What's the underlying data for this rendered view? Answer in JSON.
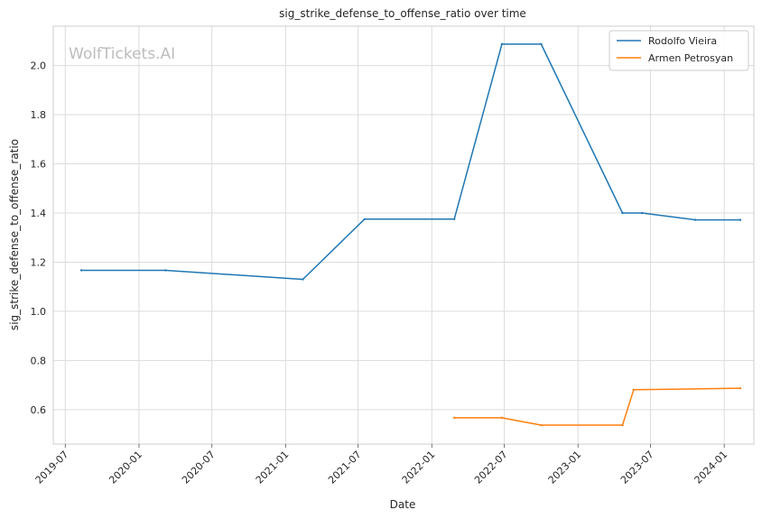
{
  "watermark": "WolfTickets.AI",
  "chart_data": {
    "type": "line",
    "title": "sig_strike_defense_to_offense_ratio over time",
    "xlabel": "Date",
    "ylabel": "sig_strike_defense_to_offense_ratio",
    "x_ticks": [
      "2019-07",
      "2020-01",
      "2020-07",
      "2021-01",
      "2021-07",
      "2022-01",
      "2022-07",
      "2023-01",
      "2023-07",
      "2024-01"
    ],
    "y_ticks": [
      "0.6",
      "0.8",
      "1.0",
      "1.2",
      "1.4",
      "1.6",
      "1.8",
      "2.0"
    ],
    "xlim": [
      "2019-06-01",
      "2024-03-15"
    ],
    "ylim": [
      0.46,
      2.16
    ],
    "grid": true,
    "legend_position": "top-right",
    "series": [
      {
        "name": "Rodolfo Vieira",
        "color": "#1f77b4",
        "points": [
          {
            "x": "2019-08-10",
            "y": 1.167
          },
          {
            "x": "2020-03-07",
            "y": 1.167
          },
          {
            "x": "2021-02-13",
            "y": 1.13
          },
          {
            "x": "2021-07-17",
            "y": 1.375
          },
          {
            "x": "2022-02-26",
            "y": 1.375
          },
          {
            "x": "2022-06-25",
            "y": 2.087
          },
          {
            "x": "2022-10-01",
            "y": 2.087
          },
          {
            "x": "2023-04-22",
            "y": 1.4
          },
          {
            "x": "2023-06-10",
            "y": 1.4
          },
          {
            "x": "2023-10-21",
            "y": 1.372
          },
          {
            "x": "2024-02-10",
            "y": 1.372
          }
        ]
      },
      {
        "name": "Armen Petrosyan",
        "color": "#ff7f0e",
        "points": [
          {
            "x": "2022-02-26",
            "y": 0.567
          },
          {
            "x": "2022-06-25",
            "y": 0.567
          },
          {
            "x": "2022-10-01",
            "y": 0.537
          },
          {
            "x": "2023-04-22",
            "y": 0.537
          },
          {
            "x": "2023-05-20",
            "y": 0.681
          },
          {
            "x": "2024-02-10",
            "y": 0.687
          }
        ]
      }
    ]
  }
}
